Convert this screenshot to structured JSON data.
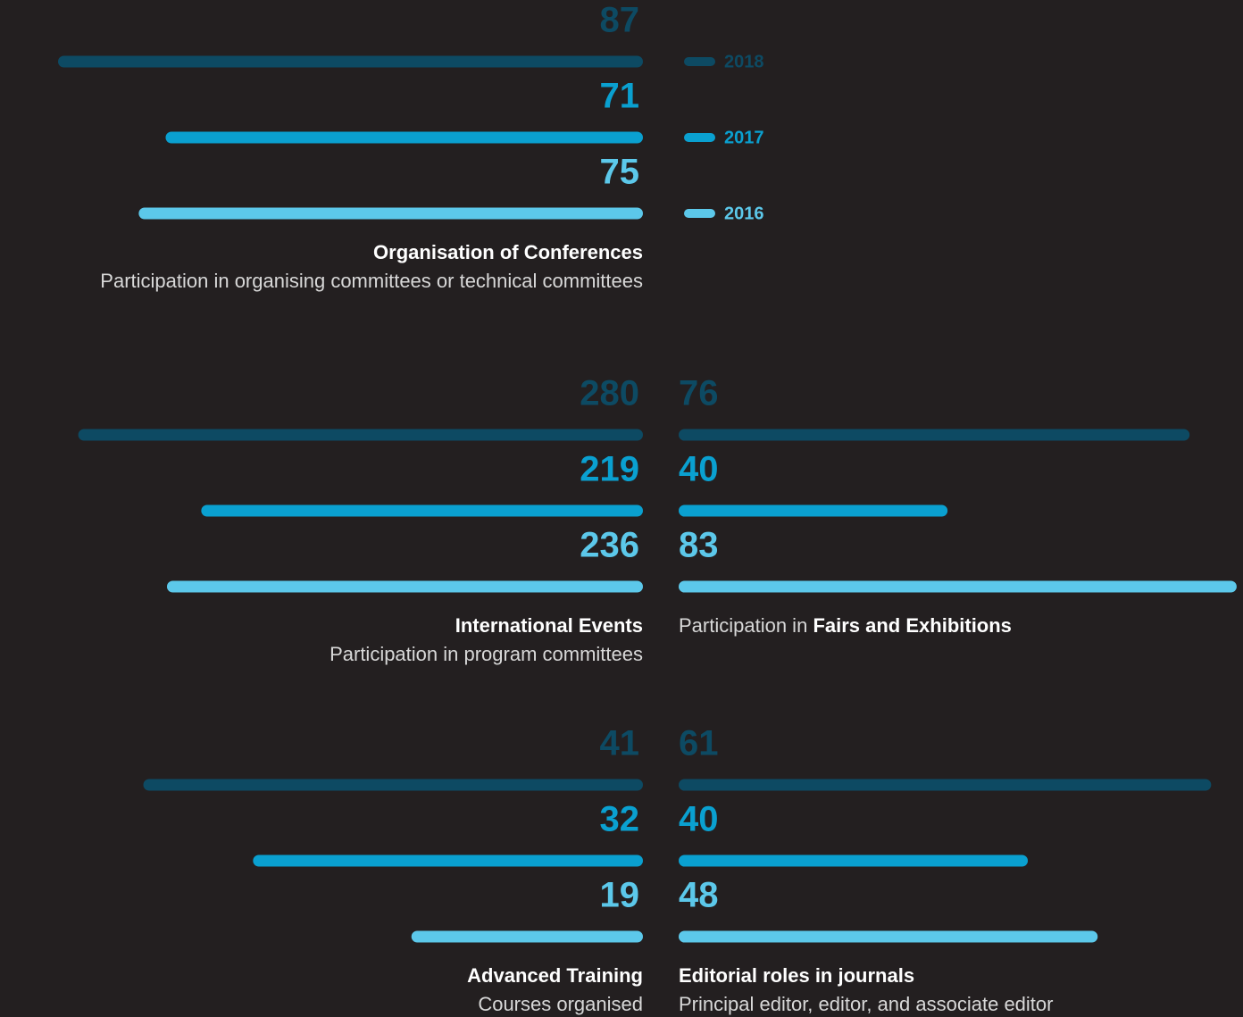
{
  "chart_data": [
    {
      "type": "bar",
      "title": "Organisation of Conferences",
      "subtitle": "Participation in organising committees or technical committees",
      "xlim": [
        0,
        87
      ],
      "series": [
        {
          "name": "2018",
          "color": "#0d4a63",
          "values": [
            87
          ]
        },
        {
          "name": "2017",
          "color": "#0aa0d0",
          "values": [
            71
          ]
        },
        {
          "name": "2016",
          "color": "#5cc8ea",
          "values": [
            75
          ]
        }
      ]
    },
    {
      "type": "bar",
      "title": "International Events",
      "subtitle": "Participation in program committees",
      "xlim": [
        0,
        290
      ],
      "series": [
        {
          "color": "#0d4a63",
          "values": [
            280
          ]
        },
        {
          "color": "#0aa0d0",
          "values": [
            219
          ]
        },
        {
          "color": "#5cc8ea",
          "values": [
            236
          ]
        }
      ]
    },
    {
      "type": "bar",
      "title_prefix": "Participation in",
      "title": "Fairs and Exhibitions",
      "xlim": [
        0,
        87
      ],
      "series": [
        {
          "color": "#0d4a63",
          "values": [
            76
          ]
        },
        {
          "color": "#0aa0d0",
          "values": [
            40
          ]
        },
        {
          "color": "#5cc8ea",
          "values": [
            83
          ]
        }
      ]
    },
    {
      "type": "bar",
      "title": "Advanced Training",
      "subtitle": "Courses organised",
      "xlim": [
        0,
        48
      ],
      "series": [
        {
          "color": "#0d4a63",
          "values": [
            41
          ]
        },
        {
          "color": "#0aa0d0",
          "values": [
            32
          ]
        },
        {
          "color": "#5cc8ea",
          "values": [
            19
          ]
        }
      ]
    },
    {
      "type": "bar",
      "title": "Editorial roles in journals",
      "subtitle": "Principal editor, editor, and associate editor",
      "xlim": [
        0,
        67
      ],
      "series": [
        {
          "color": "#0d4a63",
          "values": [
            61
          ]
        },
        {
          "color": "#0aa0d0",
          "values": [
            40
          ]
        },
        {
          "color": "#5cc8ea",
          "values": [
            48
          ]
        }
      ]
    }
  ]
}
